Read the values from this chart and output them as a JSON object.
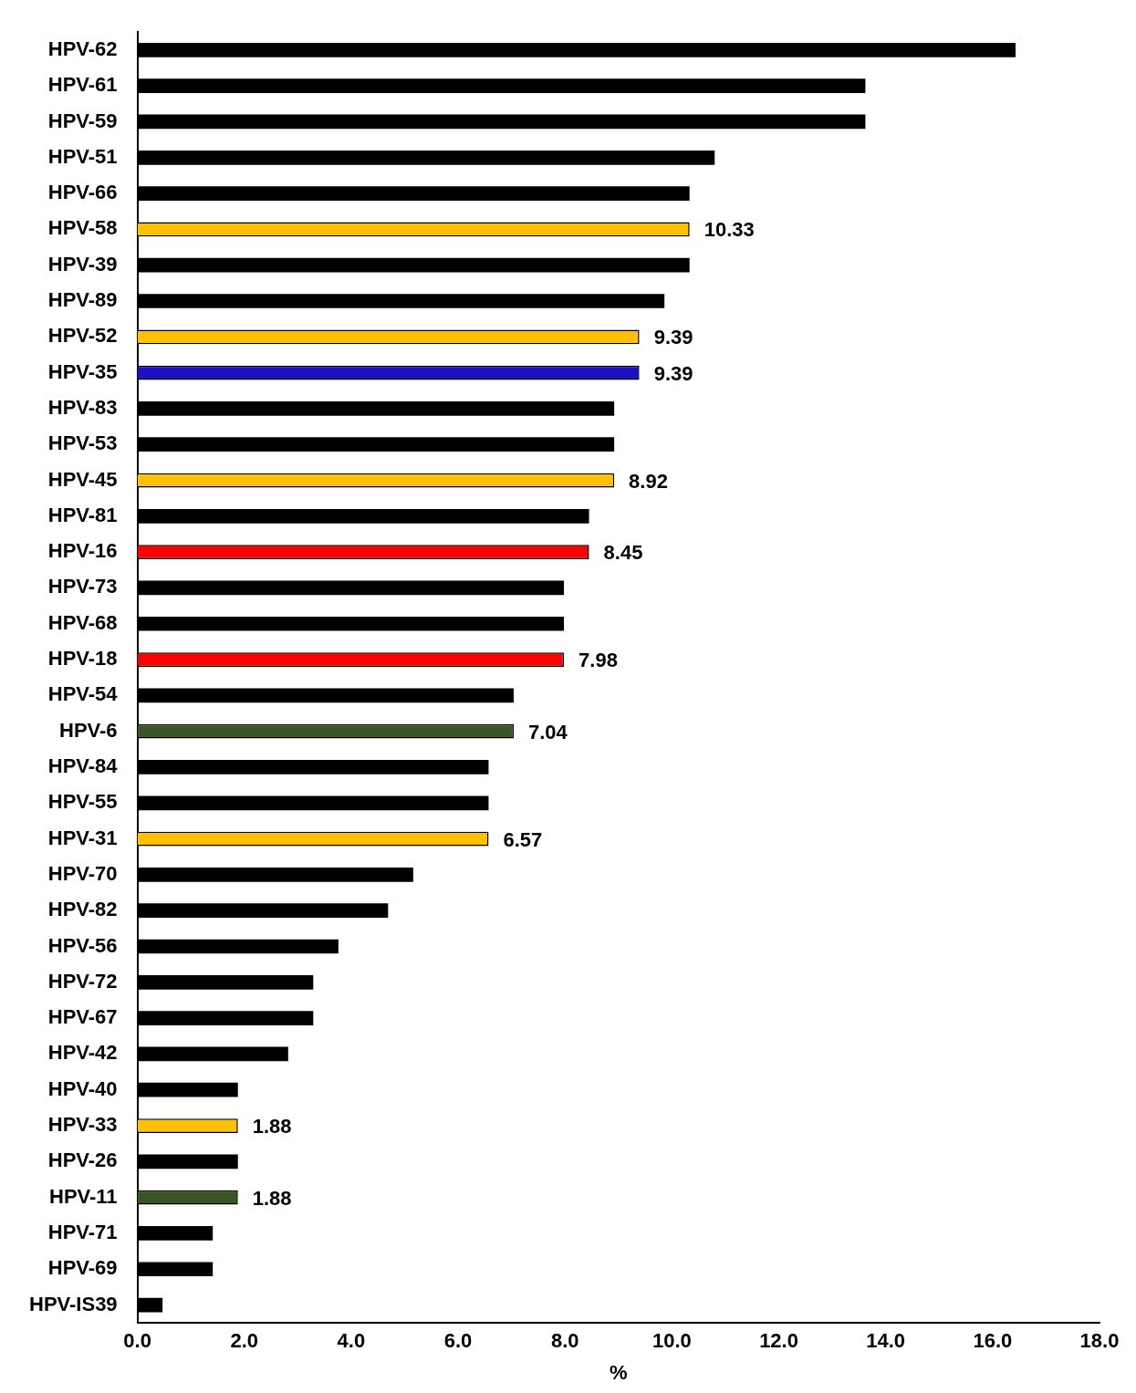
{
  "chart_data": {
    "type": "bar",
    "orientation": "horizontal",
    "xlabel": "%",
    "categories": [
      "HPV-62",
      "HPV-61",
      "HPV-59",
      "HPV-51",
      "HPV-66",
      "HPV-58",
      "HPV-39",
      "HPV-89",
      "HPV-52",
      "HPV-35",
      "HPV-83",
      "HPV-53",
      "HPV-45",
      "HPV-81",
      "HPV-16",
      "HPV-73",
      "HPV-68",
      "HPV-18",
      "HPV-54",
      "HPV-6",
      "HPV-84",
      "HPV-55",
      "HPV-31",
      "HPV-70",
      "HPV-82",
      "HPV-56",
      "HPV-72",
      "HPV-67",
      "HPV-42",
      "HPV-40",
      "HPV-33",
      "HPV-26",
      "HPV-11",
      "HPV-71",
      "HPV-69",
      "HPV-IS39"
    ],
    "values": [
      16.43,
      13.62,
      13.62,
      10.8,
      10.33,
      10.33,
      10.33,
      9.86,
      9.39,
      9.39,
      8.92,
      8.92,
      8.92,
      8.45,
      8.45,
      7.98,
      7.98,
      7.98,
      7.04,
      7.04,
      6.57,
      6.57,
      6.57,
      5.16,
      4.69,
      3.76,
      3.29,
      3.29,
      2.82,
      1.88,
      1.88,
      1.88,
      1.88,
      1.41,
      1.41,
      0.47
    ],
    "colors": [
      "#000000",
      "#000000",
      "#000000",
      "#000000",
      "#000000",
      "#ffc000",
      "#000000",
      "#000000",
      "#ffc000",
      "#1f10c8",
      "#000000",
      "#000000",
      "#ffc000",
      "#000000",
      "#ff0000",
      "#000000",
      "#000000",
      "#ff0000",
      "#000000",
      "#375623",
      "#000000",
      "#000000",
      "#ffc000",
      "#000000",
      "#000000",
      "#000000",
      "#000000",
      "#000000",
      "#000000",
      "#000000",
      "#ffc000",
      "#000000",
      "#375623",
      "#000000",
      "#000000",
      "#000000"
    ],
    "value_labels": [
      null,
      null,
      null,
      null,
      null,
      "10.33",
      null,
      null,
      "9.39",
      "9.39",
      null,
      null,
      "8.92",
      null,
      "8.45",
      null,
      null,
      "7.98",
      null,
      "7.04",
      null,
      null,
      "6.57",
      null,
      null,
      null,
      null,
      null,
      null,
      null,
      "1.88",
      null,
      "1.88",
      null,
      null,
      null
    ],
    "xlim": [
      0,
      18
    ],
    "xticks": [
      {
        "value": 0,
        "label": "0.0"
      },
      {
        "value": 2,
        "label": "2.0"
      },
      {
        "value": 4,
        "label": "4.0"
      },
      {
        "value": 6,
        "label": "6.0"
      },
      {
        "value": 8,
        "label": "8.0"
      },
      {
        "value": 10,
        "label": "10.0"
      },
      {
        "value": 12,
        "label": "12.0"
      },
      {
        "value": 14,
        "label": "14.0"
      },
      {
        "value": 16,
        "label": "16.0"
      },
      {
        "value": 18,
        "label": "18.0"
      }
    ],
    "grid": false,
    "legend": false
  }
}
